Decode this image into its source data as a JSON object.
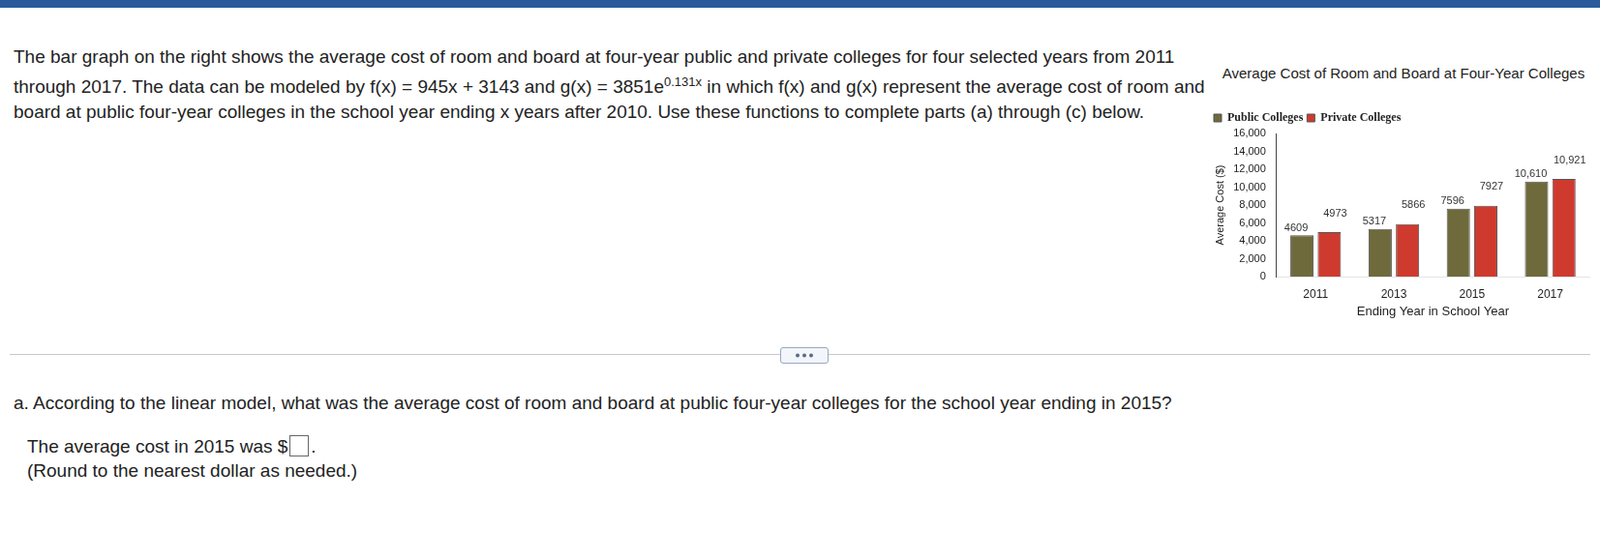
{
  "page": {
    "paragraph_before_exponent": "The bar graph on the right shows the average cost of room and board at four-year public and private colleges for four selected years from 2011 through 2017. The data can be modeled by f(x) = 945x + 3143 and g(x) = 3851e",
    "exponent": "0.131x",
    "paragraph_after_exponent": " in which f(x) and g(x) represent the average cost of room and board at public four-year colleges in the school year ending x years after 2010. Use these functions to complete parts (a) through (c) below.",
    "question": "a. According to the linear model, what was the average cost of room and board at public four-year colleges for the school year ending in 2015?",
    "answer_prefix": "The average cost in 2015 was $",
    "answer_suffix": ".",
    "note": "(Round to the nearest dollar as needed.)"
  },
  "chart_data": {
    "type": "bar",
    "title": "Average Cost of Room and Board at Four-Year Colleges",
    "x_label": "Ending Year in School Year",
    "y_label": "Average Cost ($)",
    "categories": [
      "2011",
      "2013",
      "2015",
      "2017"
    ],
    "series": [
      {
        "name": "Public Colleges",
        "color": "#6f6a3c",
        "values": [
          4609,
          5317,
          7596,
          10610
        ],
        "value_labels": [
          "4609",
          "5317",
          "7596",
          "10,610"
        ]
      },
      {
        "name": "Private Colleges",
        "color": "#cf3a2e",
        "values": [
          4973,
          5866,
          7927,
          10921
        ],
        "value_labels": [
          "4973",
          "5866",
          "7927",
          "10,921"
        ]
      }
    ],
    "ylim": [
      0,
      16000
    ],
    "yticks": [
      0,
      2000,
      4000,
      6000,
      8000,
      10000,
      12000,
      14000,
      16000
    ],
    "grid": false,
    "legend": "top-left",
    "data_labels": true
  }
}
